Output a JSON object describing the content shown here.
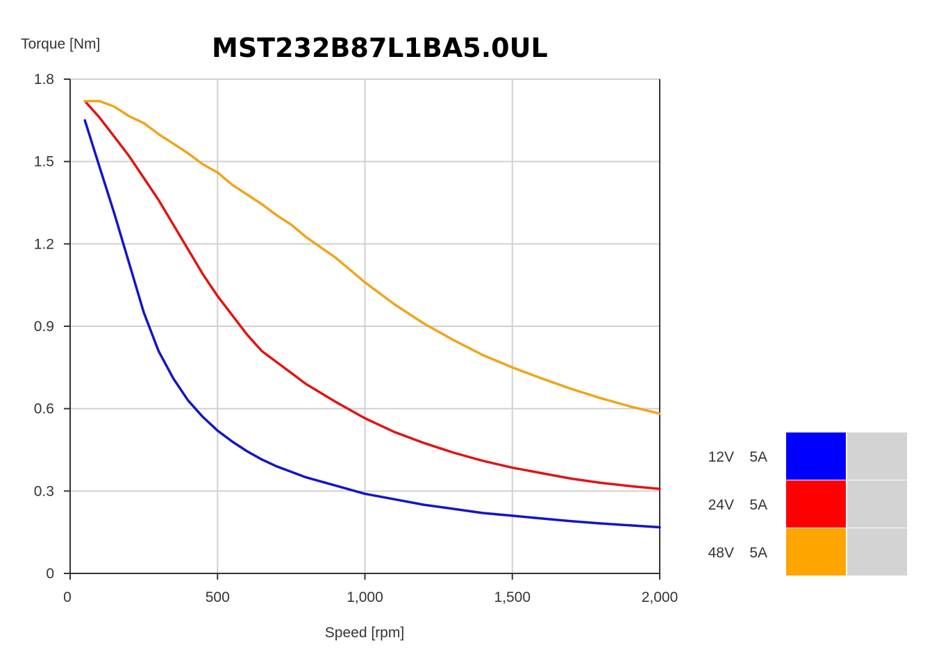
{
  "chart_data": {
    "type": "line",
    "title": "MST232B87L1BA5.0UL",
    "ylabel": "Torque  [Nm]",
    "xlabel": "Speed [rpm]",
    "xlim": [
      0,
      2000
    ],
    "ylim": [
      0,
      1.8
    ],
    "x_ticks": [
      0,
      500,
      1000,
      1500,
      2000
    ],
    "x_tick_labels": [
      "0",
      "500",
      "1,000",
      "1,500",
      "2,000"
    ],
    "y_ticks": [
      0,
      0.3,
      0.6,
      0.9,
      1.2,
      1.5,
      1.8
    ],
    "y_tick_labels": [
      "0",
      "0.3",
      "0.6",
      "0.9",
      "1.2",
      "1.5",
      "1.8"
    ],
    "grid": true,
    "legend_position": "right",
    "series": [
      {
        "voltage": "12V",
        "current": "5A",
        "color": "#0000ff",
        "line_color": "#1414c8",
        "x": [
          50,
          100,
          150,
          200,
          250,
          300,
          350,
          400,
          450,
          500,
          550,
          600,
          650,
          700,
          750,
          800,
          900,
          1000,
          1100,
          1200,
          1300,
          1400,
          1500,
          1600,
          1700,
          1800,
          1900,
          2000
        ],
        "y": [
          1.65,
          1.48,
          1.31,
          1.13,
          0.95,
          0.81,
          0.71,
          0.63,
          0.57,
          0.52,
          0.48,
          0.445,
          0.415,
          0.39,
          0.37,
          0.35,
          0.32,
          0.29,
          0.27,
          0.25,
          0.235,
          0.22,
          0.21,
          0.2,
          0.19,
          0.182,
          0.175,
          0.168
        ]
      },
      {
        "voltage": "24V",
        "current": "5A",
        "color": "#ff0000",
        "line_color": "#e01414",
        "x": [
          50,
          100,
          150,
          200,
          250,
          300,
          350,
          400,
          450,
          500,
          550,
          600,
          650,
          700,
          750,
          800,
          900,
          1000,
          1100,
          1200,
          1300,
          1400,
          1500,
          1600,
          1700,
          1800,
          1900,
          2000
        ],
        "y": [
          1.72,
          1.66,
          1.59,
          1.52,
          1.44,
          1.36,
          1.27,
          1.18,
          1.09,
          1.01,
          0.94,
          0.87,
          0.81,
          0.77,
          0.73,
          0.69,
          0.625,
          0.565,
          0.515,
          0.475,
          0.44,
          0.41,
          0.385,
          0.365,
          0.345,
          0.33,
          0.318,
          0.308
        ]
      },
      {
        "voltage": "48V",
        "current": "5A",
        "color": "#ffa500",
        "line_color": "#f0a41c",
        "x": [
          50,
          100,
          150,
          200,
          250,
          300,
          350,
          400,
          450,
          500,
          550,
          600,
          650,
          700,
          750,
          800,
          900,
          1000,
          1100,
          1200,
          1300,
          1400,
          1500,
          1600,
          1700,
          1800,
          1900,
          2000
        ],
        "y": [
          1.72,
          1.72,
          1.7,
          1.665,
          1.64,
          1.6,
          1.565,
          1.53,
          1.49,
          1.46,
          1.415,
          1.38,
          1.345,
          1.305,
          1.27,
          1.225,
          1.15,
          1.06,
          0.98,
          0.91,
          0.85,
          0.795,
          0.75,
          0.71,
          0.672,
          0.638,
          0.608,
          0.582
        ]
      }
    ]
  },
  "colors": {
    "grid": "#d0d0d0",
    "axis": "#333333",
    "legend_blank_cell": "#d3d3d3"
  }
}
